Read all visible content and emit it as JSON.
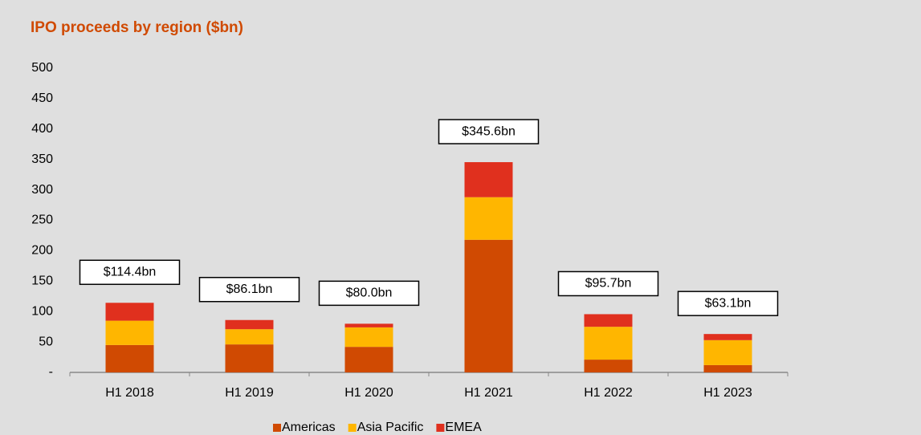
{
  "chart_data": {
    "type": "stacked_bar",
    "title": "IPO proceeds by region ($bn)",
    "categories": [
      "H1 2018",
      "H1 2019",
      "H1 2020",
      "H1 2021",
      "H1 2022",
      "H1 2023"
    ],
    "series": [
      {
        "name": "Americas",
        "color": "#d04a02",
        "values": [
          45,
          46,
          42,
          218,
          21,
          12
        ]
      },
      {
        "name": "Asia Pacific",
        "color": "#ffb600",
        "values": [
          40,
          25,
          32,
          70,
          54,
          41
        ]
      },
      {
        "name": "EMEA",
        "color": "#e0301e",
        "values": [
          29.4,
          15.1,
          6,
          57.6,
          20.7,
          10.1
        ]
      }
    ],
    "annotations": [
      "$114.4bn",
      "$86.1bn",
      "$80.0bn",
      "$345.6bn",
      "$95.7bn",
      "$63.1bn"
    ],
    "ylim": [
      0,
      500
    ],
    "yticks": [
      {
        "value": 0,
        "label": "-"
      },
      50,
      100,
      150,
      200,
      250,
      300,
      350,
      400,
      450,
      500
    ],
    "grid": false,
    "legend": "bottom"
  }
}
